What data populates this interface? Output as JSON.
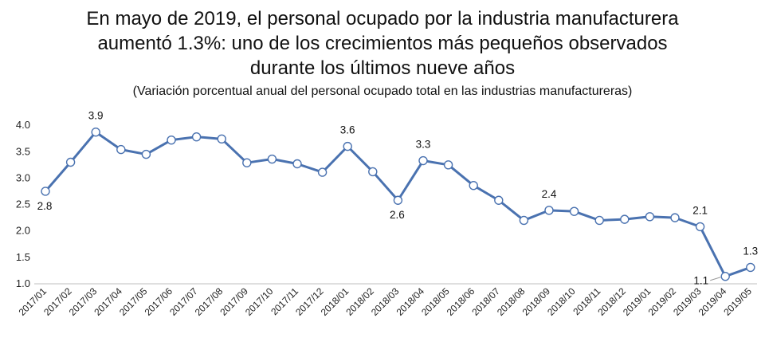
{
  "chart_data": {
    "type": "line",
    "title_lines": [
      "En mayo de 2019, el personal ocupado por la industria manufacturera",
      "aumentó 1.3%: uno de los crecimientos más pequeños observados",
      "durante los últimos nueve años"
    ],
    "subtitle": "(Variación porcentual anual del personal ocupado total en las industrias manufactureras)",
    "categories": [
      "2017/01",
      "2017/02",
      "2017/03",
      "2017/04",
      "2017/05",
      "2017/06",
      "2017/07",
      "2017/08",
      "2017/09",
      "2017/10",
      "2017/11",
      "2017/12",
      "2018/01",
      "2018/02",
      "2018/03",
      "2018/04",
      "2018/05",
      "2018/06",
      "2018/07",
      "2018/08",
      "2018/09",
      "2018/10",
      "2018/11",
      "2018/12",
      "2019/01",
      "2019/02",
      "2019/03",
      "2019/04",
      "2019/05"
    ],
    "values": [
      2.75,
      3.3,
      3.87,
      3.54,
      3.45,
      3.72,
      3.78,
      3.74,
      3.29,
      3.36,
      3.27,
      3.11,
      3.6,
      3.12,
      2.58,
      3.33,
      3.25,
      2.86,
      2.58,
      2.2,
      2.39,
      2.37,
      2.2,
      2.22,
      2.27,
      2.25,
      2.08,
      1.14,
      1.31
    ],
    "data_labels": [
      {
        "index": 0,
        "text": "2.8",
        "position": "below"
      },
      {
        "index": 2,
        "text": "3.9",
        "position": "above"
      },
      {
        "index": 12,
        "text": "3.6",
        "position": "above"
      },
      {
        "index": 14,
        "text": "2.6",
        "position": "below"
      },
      {
        "index": 15,
        "text": "3.3",
        "position": "above"
      },
      {
        "index": 20,
        "text": "2.4",
        "position": "above"
      },
      {
        "index": 26,
        "text": "2.1",
        "position": "above"
      },
      {
        "index": 27,
        "text": "1.1",
        "position": "left"
      },
      {
        "index": 28,
        "text": "1.3",
        "position": "above"
      }
    ],
    "y_ticks": [
      "1.0",
      "1.5",
      "2.0",
      "2.5",
      "3.0",
      "3.5",
      "4.0"
    ],
    "ylim": [
      1.0,
      4.0
    ],
    "xlabel": "",
    "ylabel": "",
    "grid": false,
    "line_color": "#4a72b0",
    "marker_fill": "#ffffff"
  }
}
